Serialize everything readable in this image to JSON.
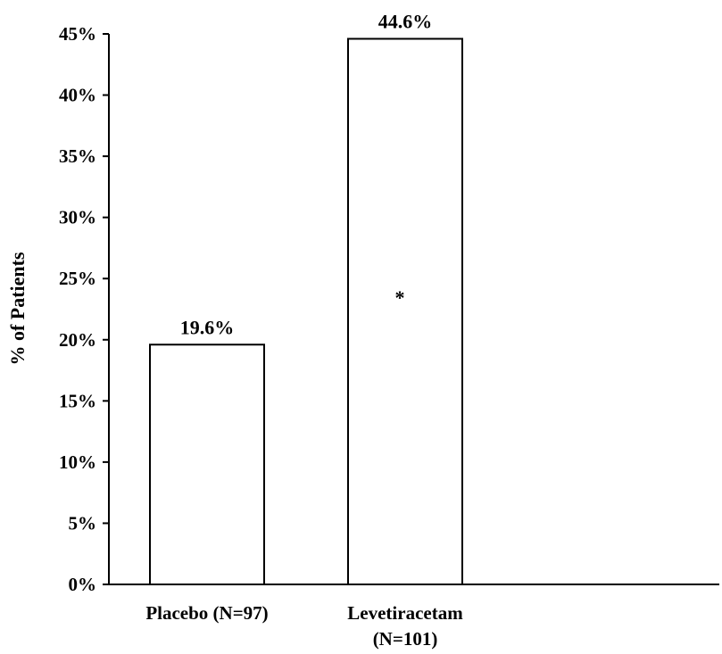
{
  "chart_data": {
    "type": "bar",
    "categories": [
      {
        "lines": [
          "Placebo (N=97)"
        ]
      },
      {
        "lines": [
          "Levetiracetam",
          "(N=101)"
        ]
      }
    ],
    "values": [
      19.6,
      44.6
    ],
    "data_labels": [
      "19.6%",
      "44.6%"
    ],
    "annotations": [
      {
        "category_index": 1,
        "text": "*"
      }
    ],
    "title": "",
    "xlabel": "",
    "ylabel": "% of Patients",
    "ylim": [
      0,
      45
    ],
    "yticks": [
      {
        "value": 0,
        "label": "0%"
      },
      {
        "value": 5,
        "label": "5%"
      },
      {
        "value": 10,
        "label": "10%"
      },
      {
        "value": 15,
        "label": "15%"
      },
      {
        "value": 20,
        "label": "20%"
      },
      {
        "value": 25,
        "label": "25%"
      },
      {
        "value": 30,
        "label": "30%"
      },
      {
        "value": 35,
        "label": "35%"
      },
      {
        "value": 40,
        "label": "40%"
      },
      {
        "value": 45,
        "label": "45%"
      }
    ],
    "grid": false,
    "legend": "none",
    "colors": {
      "bar_fill": "#ffffff",
      "bar_stroke": "#000000",
      "axis": "#000000"
    }
  }
}
